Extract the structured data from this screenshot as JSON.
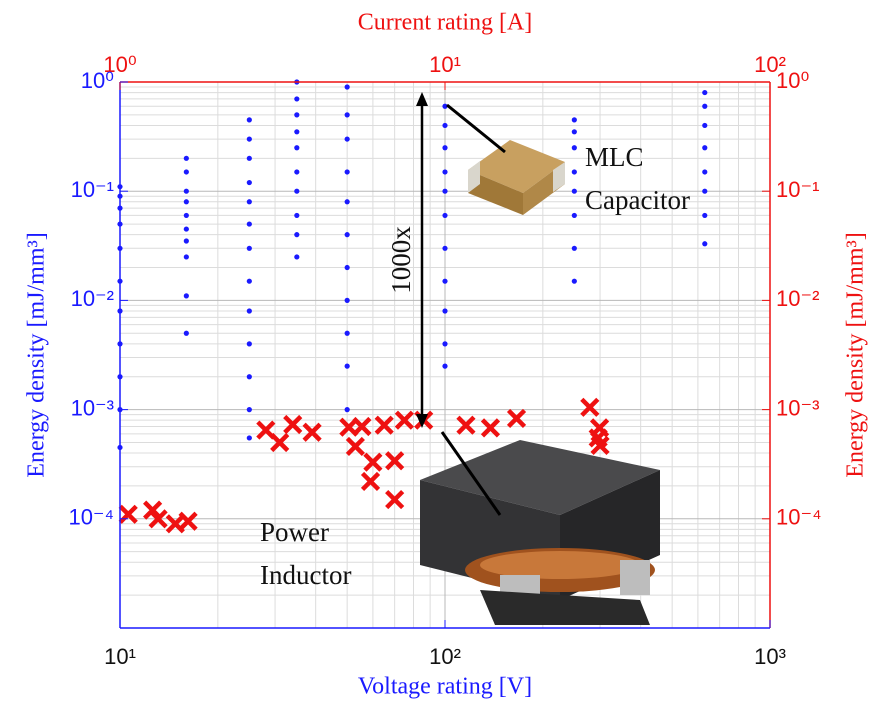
{
  "chart_data": {
    "type": "scatter",
    "xlabel": "Voltage rating [V]",
    "x2label": "Current rating [A]",
    "ylabel": "Energy density [mJ/mm³]",
    "y2label": "Energy density [mJ/mm³]",
    "xlim": [
      10,
      1000
    ],
    "xticks": [
      {
        "value": 10,
        "label": "10¹"
      },
      {
        "value": 100,
        "label": "10²"
      },
      {
        "value": 1000,
        "label": "10³"
      }
    ],
    "x2lim": [
      1,
      100
    ],
    "x2ticks": [
      {
        "value": 1,
        "label": "10⁰"
      },
      {
        "value": 10,
        "label": "10¹"
      },
      {
        "value": 100,
        "label": "10²"
      }
    ],
    "ylim": [
      1e-05,
      1
    ],
    "yticks": [
      {
        "value": 0.0001,
        "label": "10⁻⁴"
      },
      {
        "value": 0.001,
        "label": "10⁻³"
      },
      {
        "value": 0.01,
        "label": "10⁻²"
      },
      {
        "value": 0.1,
        "label": "10⁻¹"
      },
      {
        "value": 1,
        "label": "10⁰"
      }
    ],
    "y2lim": [
      1e-05,
      1
    ],
    "y2ticks": [
      {
        "value": 0.0001,
        "label": "10⁻⁴"
      },
      {
        "value": 0.001,
        "label": "10⁻³"
      },
      {
        "value": 0.01,
        "label": "10⁻²"
      },
      {
        "value": 0.1,
        "label": "10⁻¹"
      },
      {
        "value": 1,
        "label": "10⁰"
      }
    ],
    "log_x": true,
    "log_y": true,
    "grid": true,
    "minor_grid": true,
    "annotations": [
      "1000x",
      "MLC",
      "Capacitor",
      "Power",
      "Inductor"
    ],
    "series": [
      {
        "name": "MLC Capacitor",
        "color": "#1a1aff",
        "marker": "dot",
        "x": [
          10,
          10,
          10,
          10,
          10,
          10,
          10,
          10,
          10,
          10,
          10,
          16,
          16,
          16,
          16,
          16,
          16,
          16,
          16,
          16,
          16,
          25,
          25,
          25,
          25,
          25,
          25,
          25,
          25,
          25,
          25,
          25,
          25,
          25,
          35,
          35,
          35,
          35,
          35,
          35,
          35,
          35,
          35,
          35,
          50,
          50,
          50,
          50,
          50,
          50,
          50,
          50,
          50,
          50,
          50,
          100,
          100,
          100,
          100,
          100,
          100,
          100,
          100,
          100,
          100,
          100,
          250,
          250,
          250,
          250,
          250,
          250,
          250,
          250,
          630,
          630,
          630,
          630,
          630,
          630,
          630,
          630
        ],
        "values": [
          0.11,
          0.09,
          0.07,
          0.05,
          0.03,
          0.015,
          0.008,
          0.004,
          0.002,
          0.001,
          0.00045,
          0.2,
          0.15,
          0.1,
          0.08,
          0.06,
          0.045,
          0.035,
          0.025,
          0.011,
          0.005,
          0.45,
          0.3,
          0.2,
          0.12,
          0.08,
          0.05,
          0.03,
          0.015,
          0.008,
          0.004,
          0.002,
          0.001,
          0.00055,
          1,
          0.7,
          0.5,
          0.35,
          0.25,
          0.15,
          0.1,
          0.06,
          0.04,
          0.025,
          0.9,
          0.5,
          0.3,
          0.15,
          0.08,
          0.04,
          0.02,
          0.01,
          0.005,
          0.0025,
          0.001,
          0.6,
          0.4,
          0.25,
          0.15,
          0.1,
          0.06,
          0.03,
          0.015,
          0.008,
          0.004,
          0.0025,
          0.45,
          0.35,
          0.25,
          0.15,
          0.1,
          0.06,
          0.03,
          0.015,
          0.8,
          0.6,
          0.4,
          0.25,
          0.15,
          0.1,
          0.06,
          0.033
        ]
      },
      {
        "name": "Power Inductor",
        "color": "#ee1111",
        "marker": "cross",
        "axis": "x2",
        "x": [
          1.06,
          1.26,
          1.31,
          1.48,
          1.62,
          2.81,
          3.1,
          3.4,
          3.9,
          5.06,
          5.3,
          5.55,
          6.0,
          5.9,
          6.5,
          7.0,
          7.0,
          7.5,
          8.6,
          11.6,
          13.8,
          16.6,
          27.9,
          29.9,
          29.6,
          30
        ],
        "values": [
          0.00011,
          0.00012,
          0.0001,
          9e-05,
          9.5e-05,
          0.00065,
          0.0005,
          0.00073,
          0.00062,
          0.00069,
          0.00046,
          0.0007,
          0.00033,
          0.00022,
          0.00072,
          0.00034,
          0.00015,
          0.0008,
          0.0008,
          0.00072,
          0.00068,
          0.00083,
          0.00105,
          0.00068,
          0.00055,
          0.00047
        ]
      }
    ]
  }
}
